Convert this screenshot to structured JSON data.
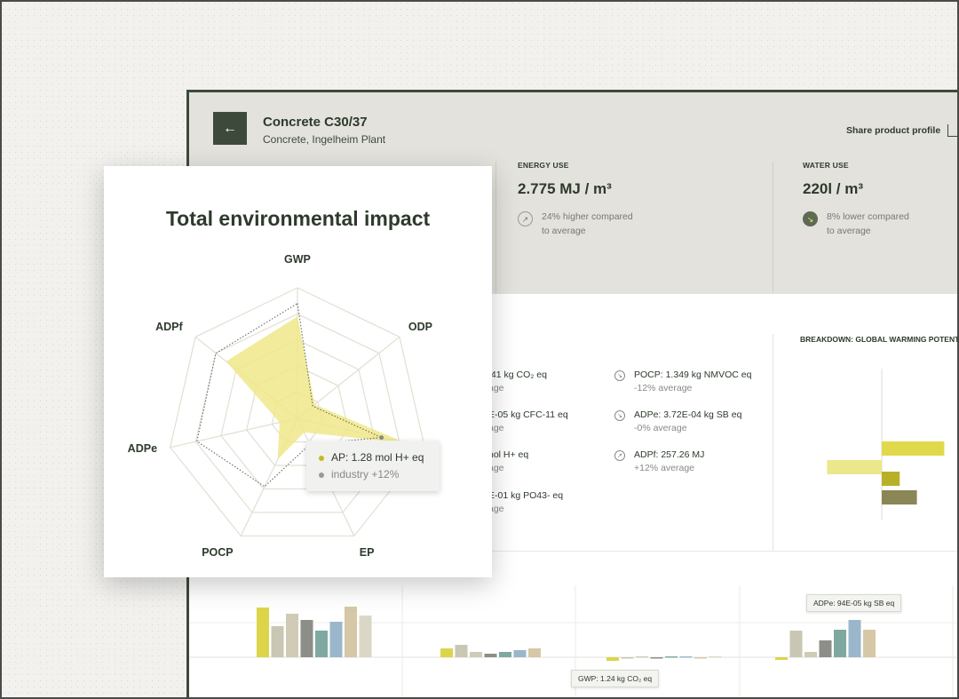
{
  "product": {
    "back_icon": "arrow-left-icon",
    "title": "Concrete C30/37",
    "subtitle": "Concrete, Ingelheim Plant",
    "share_label": "Share product profile",
    "share_icon": "share-upload-icon"
  },
  "metrics": [
    {
      "label": "ENERGY USE",
      "value": "2.775 MJ / m³",
      "comparison": [
        "24% higher compared",
        "to average"
      ],
      "icon": "arrow-up-right-icon"
    },
    {
      "label": "WATER USE",
      "value": "220l / m³",
      "comparison": [
        "8% lower compared",
        "to average"
      ],
      "icon": "arrow-down-right-icon"
    }
  ],
  "impacts_left": [
    {
      "value": ".41 kg CO₂ eq",
      "sub": "age"
    },
    {
      "value": "E-05 kg CFC-11 eq",
      "sub": "age"
    },
    {
      "value": "nol H+ eq",
      "sub": "age"
    },
    {
      "value": "E-01 kg PO43- eq",
      "sub": "age"
    }
  ],
  "impacts_right": [
    {
      "value": "POCP: 1.349 kg NMVOC eq",
      "sub": "-12% average",
      "icon": "arrow-down-right-icon"
    },
    {
      "value": "ADPe: 3.72E-04 kg SB eq",
      "sub": "-0% average",
      "icon": "arrow-down-right-icon"
    },
    {
      "value": "ADPf: 257.26 MJ",
      "sub": "+12% average",
      "icon": "arrow-up-right-icon"
    }
  ],
  "breakdown_title": "BREAKDOWN: GLOBAL WARMING POTENT",
  "breakdown_bars": [
    {
      "value": 0.8,
      "color": "#e1d94c"
    },
    {
      "value": -0.7,
      "color": "#ebe78c"
    },
    {
      "value": 0.23,
      "color": "#b9b02a"
    },
    {
      "value": 0.45,
      "color": "#8a8656"
    }
  ],
  "bottom_tooltips": {
    "adpe": "ADPe: 94E-05 kg SB eq",
    "gwp": "GWP: 1.24 kg CO₂ eq"
  },
  "bottom_groups": [
    {
      "values": [
        56,
        35,
        49,
        42,
        30,
        40,
        57,
        47
      ]
    },
    {
      "values": [
        10,
        14,
        6,
        4,
        6,
        8,
        10
      ]
    },
    {
      "values": [
        -4,
        0,
        1,
        0,
        1,
        1,
        0,
        1
      ]
    },
    {
      "values": [
        -3,
        30,
        6,
        19,
        31,
        42,
        31
      ]
    }
  ],
  "colors": {
    "bar_palette": [
      "#dcd54a",
      "#c9c6b3",
      "#cfcbb6",
      "#8e8e88",
      "#7fa9a0",
      "#9ab6cb",
      "#d6c7a6",
      "#dad7c6"
    ],
    "accent": "#3d4a3b",
    "radar_fill": "#f0e88a",
    "radar_dot": "#c8b81e"
  },
  "radar": {
    "title": "Total environmental impact",
    "axes": [
      "GWP",
      "ODP",
      "AP",
      "EP",
      "POCP",
      "ADPe",
      "ADPf"
    ],
    "axis_label_display": [
      "GWP",
      "ODP",
      "P",
      "EP",
      "POCP",
      "ADPe",
      "ADPf"
    ],
    "rings": 5,
    "product_values": [
      0.78,
      0.17,
      0.85,
      0.12,
      0.35,
      0.14,
      0.7
    ],
    "industry_values": [
      0.88,
      0.15,
      0.66,
      0.22,
      0.58,
      0.79,
      0.8
    ],
    "tooltip": {
      "product_line": "AP: 1.28 mol H+ eq",
      "industry_line": "industry +12%"
    }
  }
}
